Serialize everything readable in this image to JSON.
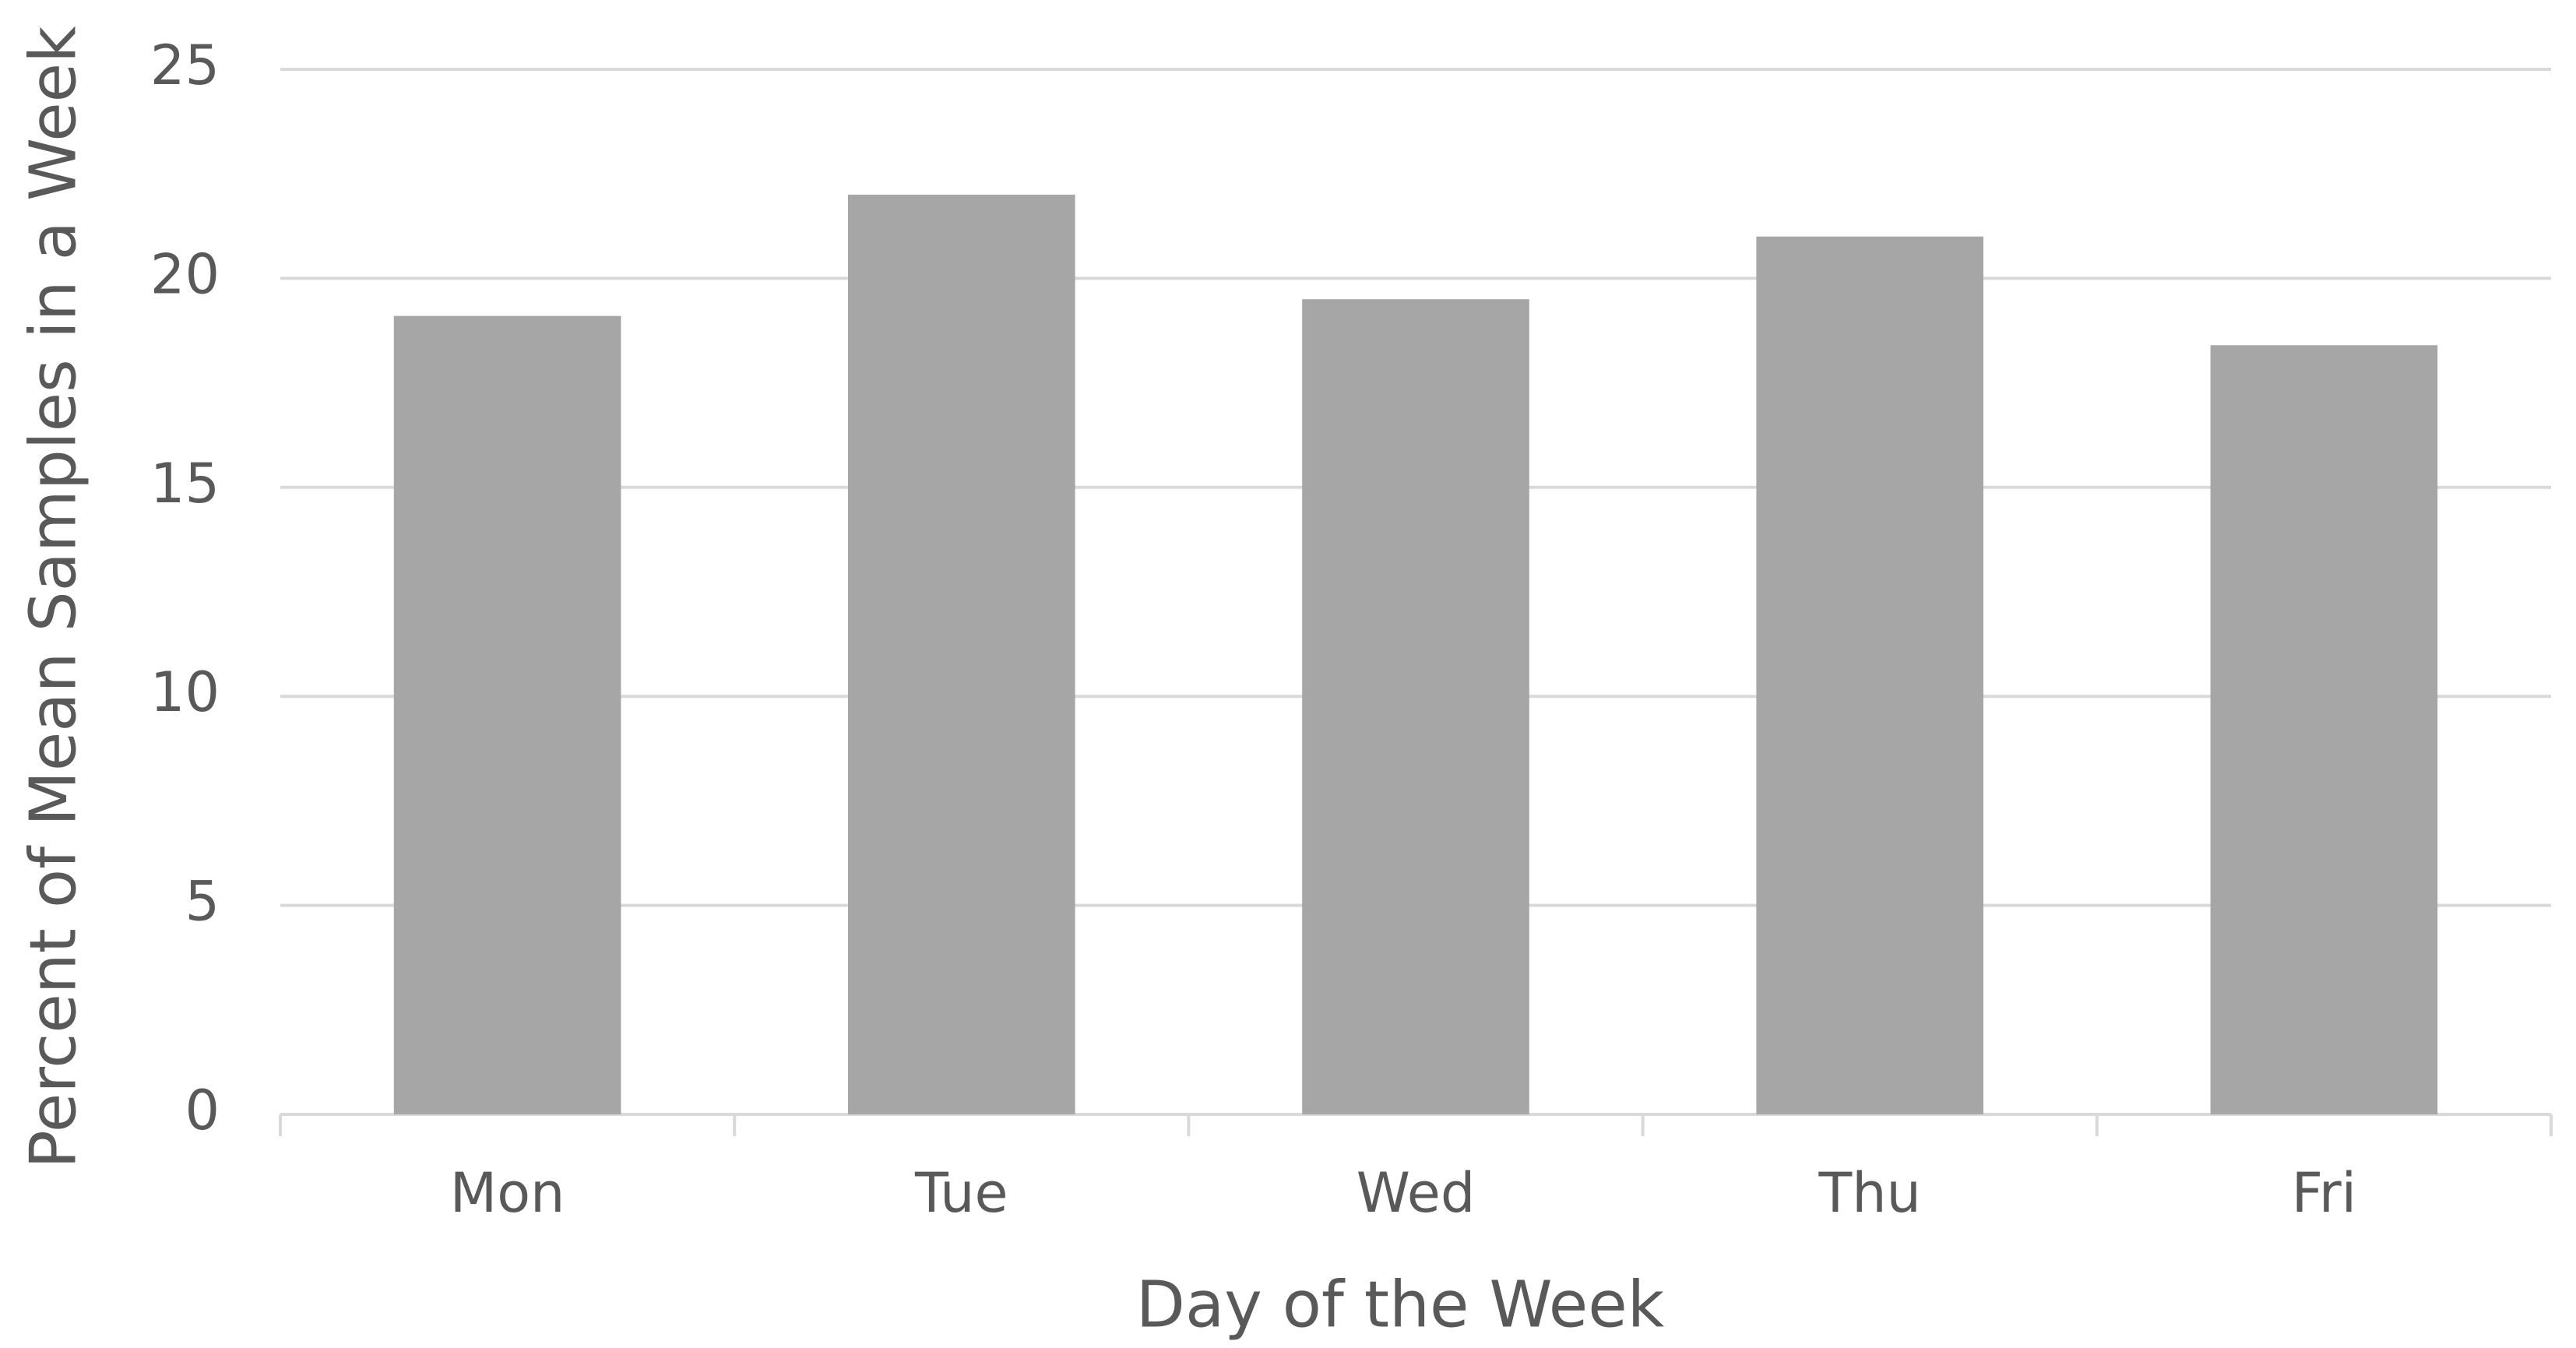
{
  "chart_data": {
    "type": "bar",
    "x_label": "Day of the Week",
    "y_label": "Percent of Mean Samples in a Week",
    "categories": [
      "Mon",
      "Tue",
      "Wed",
      "Thu",
      "Fri"
    ],
    "values": [
      19.1,
      22.0,
      19.5,
      21.0,
      18.4
    ],
    "color": "#a6a6a6",
    "ylim": [
      0,
      25
    ],
    "yticks": [
      0,
      5,
      10,
      15,
      20,
      25
    ],
    "grid": true
  }
}
